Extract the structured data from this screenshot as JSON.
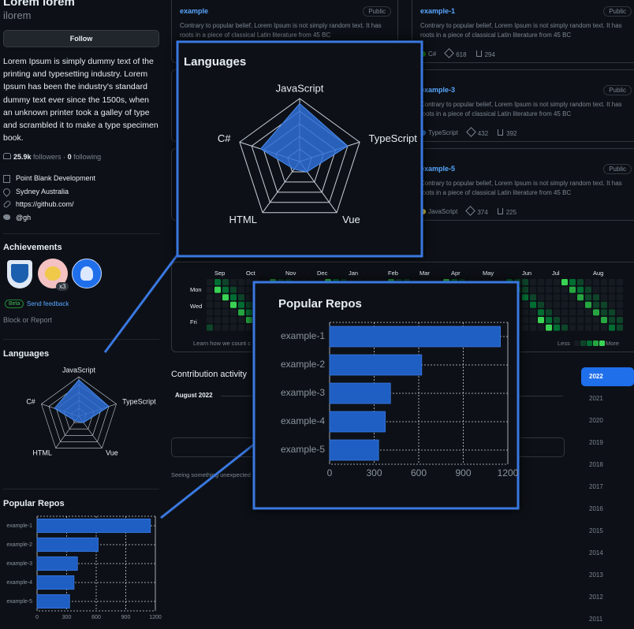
{
  "profile": {
    "name": "Lorem lorem",
    "login": "ilorem",
    "follow": "Follow",
    "bio": "Lorem Ipsum is simply dummy text of the printing and typesetting industry. Lorem Ipsum has been the industry's standard dummy text ever since the 1500s, when an unknown printer took a galley of type and scrambled it to make a type specimen book.",
    "followers": "25.9k",
    "followers_label": "followers ·",
    "following": "0",
    "following_label": "following",
    "org": "Point Blank Development",
    "location": "Sydney Australia",
    "url": "https://github.com/",
    "twitter": "@gh"
  },
  "achievements": {
    "title": "Achievements",
    "badge_count": "x3",
    "beta": "Beta",
    "feedback": "Send feedback",
    "block": "Block or Report"
  },
  "repos": [
    {
      "name": "example",
      "visibility": "Public",
      "description": "Contrary to popular belief, Lorem Ipsum is not simply random text. It has roots in a piece of classical Latin literature from 45 BC"
    },
    {
      "name": "example-1",
      "visibility": "Public",
      "description": "Contrary to popular belief, Lorem Ipsum is not simply random text. It has roots in a piece of classical Latin literature from 45 BC",
      "language": "C#",
      "language_color": "#178600",
      "stars": "618",
      "forks": "294"
    },
    {
      "name": "example-3",
      "visibility": "Public",
      "description": "Contrary to popular belief, Lorem Ipsum is not simply random text. It has roots in a piece of classical Latin literature from 45 BC",
      "language": "TypeScript",
      "language_color": "#3178c6",
      "stars": "432",
      "forks": "392"
    },
    {
      "name": "example-5",
      "visibility": "Public",
      "description": "Contrary to popular belief, Lorem Ipsum is not simply random text. It has roots in a piece of classical Latin literature from 45 BC",
      "language": "JavaScript",
      "language_color": "#f1e05a",
      "stars": "374",
      "forks": "225"
    }
  ],
  "languages_chart": {
    "type": "radar",
    "title": "Languages",
    "categories": [
      "JavaScript",
      "TypeScript",
      "Vue",
      "HTML",
      "C#"
    ],
    "values": [
      92,
      80,
      20,
      15,
      65
    ],
    "rlim": [
      0,
      100
    ],
    "rticks": [
      20,
      40,
      60,
      80,
      100
    ],
    "color": "#2f6fd6"
  },
  "popular_repos_chart": {
    "type": "bar",
    "title": "Popular Repos",
    "categories": [
      "example-1",
      "example-2",
      "example-3",
      "example-4",
      "example-5"
    ],
    "values": [
      1150,
      620,
      410,
      375,
      330
    ],
    "xlim": [
      0,
      1200
    ],
    "xticks": [
      0,
      300,
      600,
      900,
      1200
    ],
    "color": "#1f5fc4"
  },
  "contributions": {
    "months": [
      "Sep",
      "Oct",
      "Nov",
      "Dec",
      "Jan",
      "Feb",
      "Mar",
      "Apr",
      "May",
      "Jun",
      "Jul",
      "Aug"
    ],
    "days": [
      "Mon",
      "Wed",
      "Fri"
    ],
    "learn": "Learn how we count c",
    "less": "Less",
    "more": "More"
  },
  "activity": {
    "title": "Contribution activity",
    "month": "August 2022",
    "unexpected": "Seeing something unexpected"
  },
  "years": [
    "2022",
    "2021",
    "2020",
    "2019",
    "2018",
    "2017",
    "2016",
    "2015",
    "2014",
    "2013",
    "2012",
    "2011"
  ]
}
